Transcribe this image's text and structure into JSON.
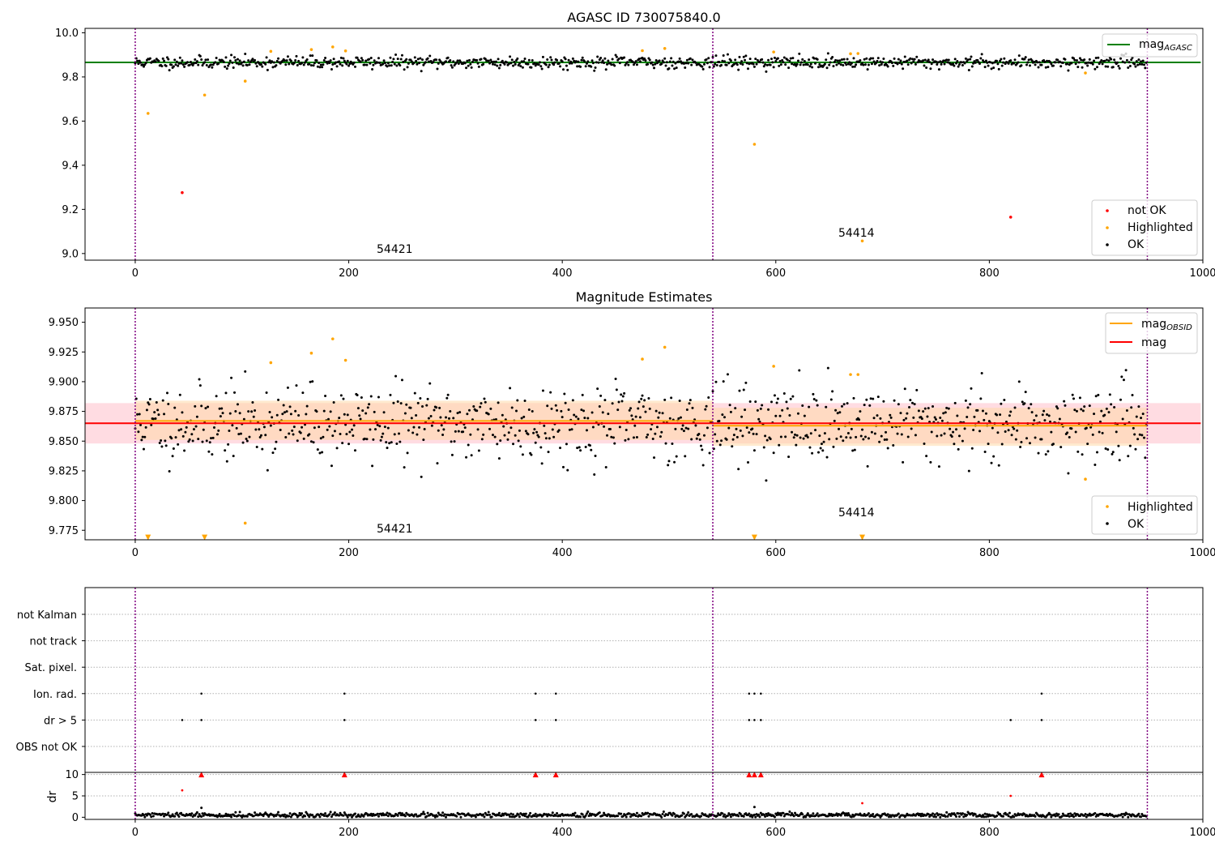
{
  "chart_data": [
    {
      "type": "scatter",
      "title": "AGASC ID 730075840.0",
      "xlabel": "",
      "ylabel": "",
      "xlim": [
        -47,
        1000
      ],
      "ylim": [
        8.97,
        10.02
      ],
      "xticks": [
        0,
        200,
        400,
        600,
        800,
        1000
      ],
      "yticks": [
        9.0,
        9.2,
        9.4,
        9.6,
        9.8,
        10.0
      ],
      "ytick_labels": [
        "9.0",
        "9.2",
        "9.4",
        "9.6",
        "9.8",
        "10.0"
      ],
      "grid": false,
      "obsid_boundaries": [
        0,
        541,
        948
      ],
      "annotations": [
        {
          "text": "54421",
          "x": 270,
          "y": 9.0
        },
        {
          "text": "54414",
          "x": 745,
          "y": 9.08
        }
      ],
      "lines": [
        {
          "name": "mag_AGASC",
          "label": "mag",
          "subscript": "AGASC",
          "color": "#008000",
          "x": [
            -47,
            998
          ],
          "y": [
            9.866,
            9.866
          ]
        }
      ],
      "series": [
        {
          "name": "OK",
          "color": "#000000",
          "band": {
            "center": 9.866,
            "spread": 0.014,
            "seed": 11,
            "n": 948
          }
        },
        {
          "name": "Highlighted",
          "color": "#ffa500",
          "x": [
            12,
            65,
            103,
            127,
            165,
            185,
            197,
            475,
            496,
            580,
            598,
            670,
            677,
            681,
            890
          ],
          "y": [
            9.635,
            9.718,
            9.781,
            9.916,
            9.924,
            9.936,
            9.918,
            9.919,
            9.929,
            9.495,
            9.913,
            9.905,
            9.906,
            9.057,
            9.818
          ]
        },
        {
          "name": "not OK",
          "color": "#ff0000",
          "x": [
            44,
            820
          ],
          "y": [
            9.276,
            9.165
          ]
        }
      ],
      "legend_top": [
        {
          "label": "mag",
          "subscript": "AGASC",
          "color": "#008000"
        }
      ],
      "legend_bottom": [
        "not OK",
        "Highlighted",
        "OK"
      ],
      "legend_placement": [
        "top-right",
        "bottom-right"
      ]
    },
    {
      "type": "scatter",
      "title": "Magnitude Estimates",
      "xlabel": "",
      "ylabel": "",
      "xlim": [
        -47,
        1000
      ],
      "ylim": [
        9.767,
        9.962
      ],
      "xticks": [
        0,
        200,
        400,
        600,
        800,
        1000
      ],
      "yticks": [
        9.775,
        9.8,
        9.825,
        9.85,
        9.875,
        9.9,
        9.925,
        9.95
      ],
      "ytick_labels": [
        "9.775",
        "9.800",
        "9.825",
        "9.850",
        "9.875",
        "9.900",
        "9.925",
        "9.950"
      ],
      "grid": false,
      "obsid_boundaries": [
        0,
        541,
        948
      ],
      "annotations": [
        {
          "text": "54421",
          "x": 270,
          "y": 9.773
        },
        {
          "text": "54414",
          "x": 745,
          "y": 9.787
        }
      ],
      "bands": [
        {
          "name": "mag band",
          "color": "#ffc0cb",
          "x": [
            -47,
            998
          ],
          "y0": 9.848,
          "y1": 9.882
        },
        {
          "name": "mag_OBSID band 54421",
          "color": "#ffd8a8",
          "x": [
            0,
            541
          ],
          "y0": 9.851,
          "y1": 9.884
        },
        {
          "name": "mag_OBSID band 54414",
          "color": "#ffd8a8",
          "x": [
            541,
            948
          ],
          "y0": 9.846,
          "y1": 9.878
        }
      ],
      "lines": [
        {
          "name": "mag_OBSID 54421",
          "color": "#ffa500",
          "x": [
            0,
            541
          ],
          "y": [
            9.867,
            9.867
          ]
        },
        {
          "name": "mag_OBSID 54414",
          "color": "#ffa500",
          "x": [
            541,
            948
          ],
          "y": [
            9.863,
            9.863
          ]
        },
        {
          "name": "mag",
          "color": "#ff0000",
          "x": [
            -47,
            998
          ],
          "y": [
            9.865,
            9.865
          ]
        }
      ],
      "series": [
        {
          "name": "OK",
          "color": "#000000",
          "band": {
            "center": 9.865,
            "spread": 0.016,
            "seed": 11,
            "n": 948
          }
        },
        {
          "name": "Highlighted",
          "color": "#ffa500",
          "x": [
            103,
            127,
            165,
            185,
            197,
            475,
            496,
            598,
            670,
            677,
            890
          ],
          "y": [
            9.781,
            9.916,
            9.924,
            9.936,
            9.918,
            9.919,
            9.929,
            9.913,
            9.906,
            9.906,
            9.818
          ]
        },
        {
          "name": "Highlighted (off-scale low)",
          "color": "#ffa500",
          "marker": "triangle-down",
          "x": [
            12,
            65,
            580,
            681
          ],
          "y": [
            9.769,
            9.769,
            9.769,
            9.769
          ]
        }
      ],
      "legend_top": [
        {
          "label": "mag",
          "subscript": "OBSID",
          "color": "#ffa500"
        },
        {
          "label": "mag",
          "subscript": "",
          "color": "#ff0000"
        }
      ],
      "legend_bottom": [
        "Highlighted",
        "OK"
      ],
      "legend_placement": [
        "top-right",
        "bottom-right"
      ]
    },
    {
      "type": "scatter",
      "title": "",
      "xlabel": "",
      "ylabel": "",
      "xlim": [
        -47,
        1000
      ],
      "categories": [
        "not Kalman",
        "not track",
        "Sat. pixel.",
        "Ion. rad.",
        "dr > 5",
        "OBS not OK"
      ],
      "grid": true,
      "obsid_boundaries": [
        0,
        541,
        948
      ],
      "series": [
        {
          "name": "Ion. rad.",
          "color": "#000000",
          "x": [
            62,
            196,
            375,
            394,
            575,
            580,
            586,
            849
          ]
        },
        {
          "name": "dr > 5",
          "color": "#000000",
          "x": [
            44,
            62,
            196,
            375,
            394,
            575,
            580,
            586,
            820,
            849
          ]
        }
      ]
    },
    {
      "type": "scatter",
      "title": "",
      "xlabel": "",
      "ylabel": "dr",
      "xlim": [
        -47,
        1000
      ],
      "ylim": [
        -0.5,
        10.5
      ],
      "xticks": [
        0,
        200,
        400,
        600,
        800,
        1000
      ],
      "yticks": [
        0,
        5,
        10
      ],
      "ytick_labels": [
        "0",
        "5",
        "10"
      ],
      "grid": true,
      "obsid_boundaries": [
        0,
        541,
        948
      ],
      "series": [
        {
          "name": "dr",
          "color": "#000000",
          "band": {
            "center": 0.5,
            "spread": 0.35,
            "seed": 29,
            "n": 948
          },
          "extra_x": [
            62,
            580
          ],
          "extra_y": [
            2.2,
            2.4
          ]
        },
        {
          "name": "dr (red)",
          "color": "#ff0000",
          "x": [
            44,
            820,
            681
          ],
          "y": [
            6.3,
            5.0,
            3.3
          ]
        },
        {
          "name": "dr capped",
          "color": "#ff0000",
          "marker": "triangle-up",
          "x": [
            62,
            196,
            375,
            394,
            575,
            580,
            586,
            849
          ],
          "y": [
            10,
            10,
            10,
            10,
            10,
            10,
            10,
            10
          ]
        }
      ]
    }
  ]
}
